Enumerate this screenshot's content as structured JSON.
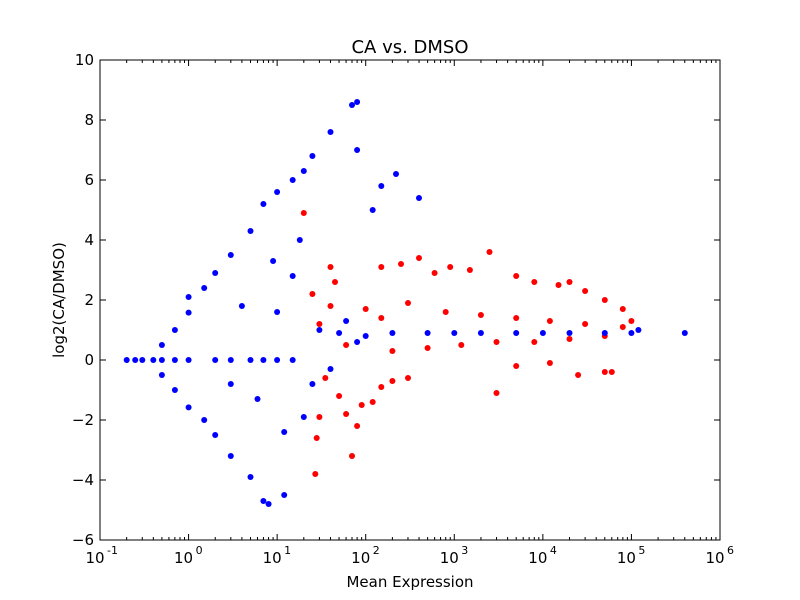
{
  "chart_data": {
    "type": "scatter",
    "title": "CA vs. DMSO",
    "xlabel": "Mean Expression",
    "ylabel": "log2(CA/DMSO)",
    "xscale": "log",
    "xlim": [
      0.1,
      1000000
    ],
    "ylim": [
      -6,
      10
    ],
    "grid": false,
    "legend": "none",
    "x_ticks": [
      {
        "value": 0.1,
        "base": "10",
        "exp": "-1"
      },
      {
        "value": 1,
        "base": "10",
        "exp": "0"
      },
      {
        "value": 10,
        "base": "10",
        "exp": "1"
      },
      {
        "value": 100,
        "base": "10",
        "exp": "2"
      },
      {
        "value": 1000,
        "base": "10",
        "exp": "3"
      },
      {
        "value": 10000,
        "base": "10",
        "exp": "4"
      },
      {
        "value": 100000,
        "base": "10",
        "exp": "5"
      },
      {
        "value": 1000000,
        "base": "10",
        "exp": "6"
      }
    ],
    "y_ticks": [
      {
        "value": -6,
        "label": "−6"
      },
      {
        "value": -4,
        "label": "−4"
      },
      {
        "value": -2,
        "label": "−2"
      },
      {
        "value": 0,
        "label": "0"
      },
      {
        "value": 2,
        "label": "2"
      },
      {
        "value": 4,
        "label": "4"
      },
      {
        "value": 6,
        "label": "6"
      },
      {
        "value": 8,
        "label": "8"
      },
      {
        "value": 10,
        "label": "10"
      }
    ],
    "series": [
      {
        "color": "#ff0000",
        "points": [
          [
            20,
            4.9
          ],
          [
            25,
            2.2
          ],
          [
            30,
            1.2
          ],
          [
            35,
            -0.6
          ],
          [
            40,
            3.1
          ],
          [
            45,
            2.6
          ],
          [
            30,
            -1.9
          ],
          [
            28,
            -2.6
          ],
          [
            27,
            -3.8
          ],
          [
            50,
            -1.2
          ],
          [
            60,
            -1.8
          ],
          [
            70,
            -3.2
          ],
          [
            80,
            -2.2
          ],
          [
            90,
            -1.5
          ],
          [
            120,
            -1.4
          ],
          [
            150,
            -0.9
          ],
          [
            200,
            -0.7
          ],
          [
            300,
            -0.6
          ],
          [
            150,
            3.1
          ],
          [
            250,
            3.2
          ],
          [
            400,
            3.4
          ],
          [
            600,
            2.9
          ],
          [
            900,
            3.1
          ],
          [
            1500,
            3.0
          ],
          [
            2500,
            3.6
          ],
          [
            5000,
            2.8
          ],
          [
            8000,
            2.6
          ],
          [
            15000,
            2.5
          ],
          [
            20000,
            2.6
          ],
          [
            30000,
            2.3
          ],
          [
            50000,
            2.0
          ],
          [
            80000,
            1.7
          ],
          [
            3000,
            -1.1
          ],
          [
            25000,
            -0.5
          ],
          [
            50000,
            -0.4
          ],
          [
            60000,
            -0.4
          ],
          [
            5000,
            -0.2
          ],
          [
            12000,
            -0.1
          ],
          [
            40,
            1.8
          ],
          [
            60,
            0.5
          ],
          [
            100,
            1.7
          ],
          [
            150,
            1.4
          ],
          [
            200,
            0.3
          ],
          [
            300,
            1.9
          ],
          [
            500,
            0.4
          ],
          [
            800,
            1.6
          ],
          [
            1200,
            0.5
          ],
          [
            2000,
            1.5
          ],
          [
            3000,
            0.6
          ],
          [
            5000,
            1.4
          ],
          [
            8000,
            0.6
          ],
          [
            12000,
            1.3
          ],
          [
            20000,
            0.7
          ],
          [
            30000,
            1.2
          ],
          [
            50000,
            0.8
          ],
          [
            80000,
            1.1
          ],
          [
            100000,
            1.3
          ]
        ]
      },
      {
        "color": "#0000ff",
        "points": [
          [
            0.2,
            0
          ],
          [
            0.25,
            0
          ],
          [
            0.3,
            0
          ],
          [
            0.4,
            0
          ],
          [
            0.5,
            0
          ],
          [
            0.7,
            0
          ],
          [
            1,
            0
          ],
          [
            2,
            0
          ],
          [
            3,
            0
          ],
          [
            5,
            0
          ],
          [
            7,
            0
          ],
          [
            10,
            0
          ],
          [
            15,
            0
          ],
          [
            0.5,
            0.5
          ],
          [
            0.5,
            -0.5
          ],
          [
            0.7,
            1
          ],
          [
            0.7,
            -1
          ],
          [
            1,
            1.58
          ],
          [
            1,
            -1.58
          ],
          [
            1,
            2.1
          ],
          [
            1.5,
            2.4
          ],
          [
            1.5,
            -2.0
          ],
          [
            2,
            2.9
          ],
          [
            2,
            -2.5
          ],
          [
            3,
            3.5
          ],
          [
            3,
            -3.2
          ],
          [
            5,
            4.3
          ],
          [
            5,
            -3.9
          ],
          [
            7,
            5.2
          ],
          [
            7,
            -4.7
          ],
          [
            8,
            -4.8
          ],
          [
            12,
            -4.5
          ],
          [
            10,
            5.6
          ],
          [
            15,
            6.0
          ],
          [
            20,
            6.3
          ],
          [
            25,
            6.8
          ],
          [
            40,
            7.6
          ],
          [
            70,
            8.5
          ],
          [
            80,
            8.6
          ],
          [
            80,
            7.0
          ],
          [
            150,
            5.8
          ],
          [
            120,
            5.0
          ],
          [
            220,
            6.2
          ],
          [
            400,
            5.4
          ],
          [
            30,
            1.0
          ],
          [
            50,
            0.9
          ],
          [
            100,
            0.8
          ],
          [
            200,
            0.9
          ],
          [
            500,
            0.9
          ],
          [
            1000,
            0.9
          ],
          [
            2000,
            0.9
          ],
          [
            5000,
            0.9
          ],
          [
            10000,
            0.9
          ],
          [
            20000,
            0.9
          ],
          [
            50000,
            0.9
          ],
          [
            100000,
            0.9
          ],
          [
            120000,
            1.0
          ],
          [
            400000,
            0.9
          ],
          [
            80,
            0.6
          ],
          [
            60,
            1.3
          ],
          [
            40,
            -0.3
          ],
          [
            20,
            -1.9
          ],
          [
            25,
            -0.8
          ],
          [
            15,
            2.8
          ],
          [
            18,
            4.0
          ],
          [
            10,
            1.6
          ],
          [
            12,
            -2.4
          ],
          [
            4,
            1.8
          ],
          [
            6,
            -1.3
          ],
          [
            9,
            3.3
          ],
          [
            3,
            -0.8
          ]
        ]
      }
    ]
  }
}
